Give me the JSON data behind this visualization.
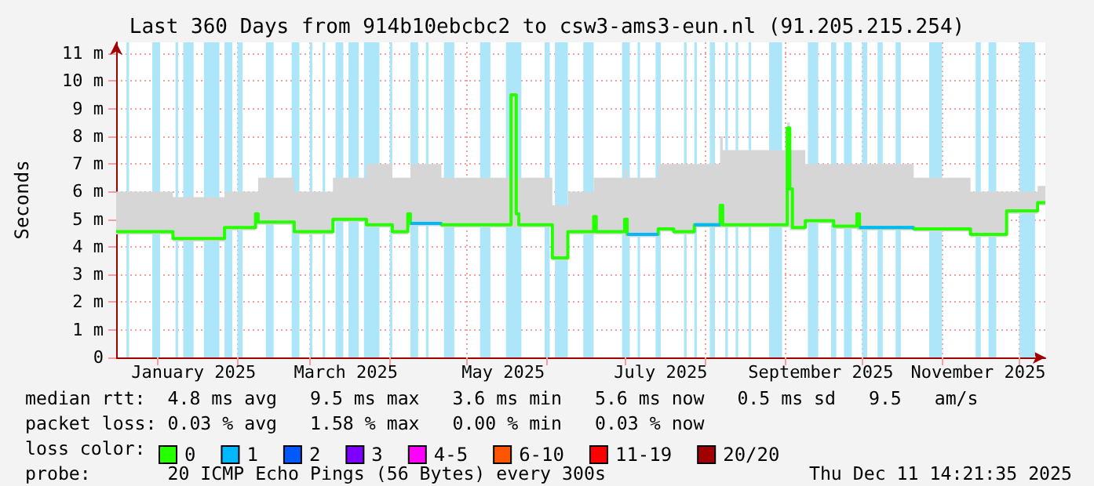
{
  "chart_data": {
    "type": "step",
    "title": "Last 360 Days from 914b10ebcbc2 to csw3-ams3-eun.nl (91.205.215.254)",
    "ylabel": "Seconds",
    "legend_title": "loss color:",
    "legend": "bottom",
    "grid": true,
    "x": [
      "2024-12-16",
      "2025-01-07",
      "2025-01-27",
      "2025-02-08",
      "2025-02-09",
      "2025-02-23",
      "2025-03-10",
      "2025-03-23",
      "2025-04-02",
      "2025-04-08",
      "2025-04-09",
      "2025-04-21",
      "2025-05-18",
      "2025-05-20",
      "2025-05-21",
      "2025-06-03",
      "2025-06-09",
      "2025-06-19",
      "2025-06-20",
      "2025-07-01",
      "2025-07-02",
      "2025-07-14",
      "2025-07-20",
      "2025-07-28",
      "2025-08-07",
      "2025-08-08",
      "2025-09-02",
      "2025-09-03",
      "2025-09-04",
      "2025-09-09",
      "2025-09-20",
      "2025-09-29",
      "2025-09-30",
      "2025-10-21",
      "2025-11-12",
      "2025-11-26",
      "2025-12-08",
      "2025-12-11"
    ],
    "series": [
      {
        "name": "0",
        "color": "#26ff00",
        "values": [
          4.55,
          4.3,
          4.7,
          5.2,
          4.9,
          4.55,
          5.0,
          4.8,
          4.55,
          5.2,
          4.85,
          4.8,
          9.5,
          5.2,
          4.8,
          3.6,
          4.55,
          5.1,
          4.55,
          5.0,
          4.45,
          4.65,
          4.55,
          4.8,
          5.5,
          4.8,
          8.3,
          6.1,
          4.7,
          4.95,
          4.75,
          5.2,
          4.7,
          4.65,
          4.45,
          5.3,
          5.6,
          5.6
        ],
        "lower": [
          4.45,
          4.2,
          4.6,
          4.8,
          4.8,
          4.45,
          4.9,
          4.7,
          4.45,
          4.7,
          4.75,
          4.7,
          4.7,
          4.7,
          4.7,
          3.5,
          4.45,
          4.45,
          4.45,
          4.35,
          4.35,
          4.55,
          4.45,
          4.7,
          4.7,
          4.7,
          4.7,
          4.6,
          4.6,
          4.85,
          4.65,
          4.6,
          4.6,
          4.55,
          4.35,
          5.2,
          5.5,
          5.5
        ],
        "upper": [
          6.0,
          5.8,
          6.0,
          6.0,
          6.5,
          6.0,
          6.5,
          7.0,
          6.5,
          6.5,
          7.0,
          6.5,
          9.6,
          6.5,
          6.5,
          5.5,
          6.0,
          6.5,
          6.5,
          6.8,
          6.5,
          7.0,
          7.0,
          7.0,
          8.0,
          7.5,
          8.5,
          7.5,
          7.5,
          7.0,
          7.0,
          7.0,
          7.0,
          6.5,
          6.0,
          6.0,
          6.2,
          6.0
        ]
      },
      {
        "name": "1",
        "type": "line",
        "color": "#00b8ff",
        "values": [
          null,
          null,
          null,
          null,
          null,
          null,
          null,
          null,
          null,
          null,
          4.85,
          4.85,
          null,
          null,
          null,
          null,
          null,
          null,
          null,
          null,
          4.45,
          4.45,
          null,
          4.8,
          4.8,
          null,
          null,
          null,
          null,
          null,
          null,
          null,
          4.7,
          4.7,
          null,
          null,
          null,
          null
        ]
      },
      {
        "name": "2",
        "color": "#0059ff",
        "values": [
          null,
          null,
          null,
          null,
          null,
          null,
          null,
          null,
          null,
          null,
          null,
          null,
          null,
          null,
          null,
          null,
          null,
          null,
          null,
          null,
          null,
          null,
          null,
          null,
          null,
          null,
          null,
          null,
          null,
          null,
          null,
          null,
          null,
          null,
          null,
          null,
          null,
          null
        ]
      },
      {
        "name": "3",
        "color": "#7e00ff",
        "values": [
          null,
          null,
          null,
          null,
          null,
          null,
          null,
          null,
          null,
          null,
          null,
          null,
          null,
          null,
          null,
          null,
          null,
          null,
          null,
          null,
          null,
          null,
          null,
          null,
          null,
          null,
          null,
          null,
          null,
          null,
          null,
          null,
          null,
          null,
          null,
          null,
          null,
          null
        ]
      },
      {
        "name": "4-5",
        "color": "#ff00ff",
        "values": [
          null,
          null,
          null,
          null,
          null,
          null,
          null,
          null,
          null,
          null,
          null,
          null,
          null,
          null,
          null,
          null,
          null,
          null,
          null,
          null,
          null,
          null,
          null,
          null,
          null,
          null,
          null,
          null,
          null,
          null,
          null,
          null,
          null,
          null,
          null,
          null,
          null,
          null
        ]
      },
      {
        "name": "6-10",
        "color": "#ff5500",
        "values": [
          null,
          null,
          null,
          null,
          null,
          null,
          null,
          null,
          null,
          null,
          null,
          null,
          null,
          null,
          null,
          null,
          null,
          null,
          null,
          null,
          null,
          null,
          null,
          null,
          null,
          null,
          null,
          null,
          null,
          null,
          null,
          null,
          null,
          null,
          null,
          null,
          null,
          null
        ]
      },
      {
        "name": "11-19",
        "color": "#ff0000",
        "values": [
          null,
          null,
          null,
          null,
          null,
          null,
          null,
          null,
          null,
          null,
          null,
          null,
          null,
          null,
          null,
          null,
          null,
          null,
          null,
          null,
          null,
          null,
          null,
          null,
          null,
          null,
          null,
          null,
          null,
          null,
          null,
          null,
          null,
          null,
          null,
          null,
          null,
          null
        ]
      },
      {
        "name": "20/20",
        "color": "#a10000",
        "values": [
          null,
          null,
          null,
          null,
          null,
          null,
          null,
          null,
          null,
          null,
          null,
          null,
          null,
          null,
          null,
          null,
          null,
          null,
          null,
          null,
          null,
          null,
          null,
          null,
          null,
          null,
          null,
          null,
          null,
          null,
          null,
          null,
          null,
          null,
          null,
          null,
          null,
          null
        ]
      }
    ],
    "xlim": [
      "2024-12-16",
      "2025-12-11"
    ],
    "xticks": [
      {
        "value": "2025-01-01",
        "label": null
      },
      {
        "value": "2025-01-15",
        "label": "January 2025"
      },
      {
        "value": "2025-02-01",
        "label": null
      },
      {
        "value": "2025-03-01",
        "label": null
      },
      {
        "value": "2025-03-15",
        "label": "March 2025"
      },
      {
        "value": "2025-04-01",
        "label": null
      },
      {
        "value": "2025-05-01",
        "label": null
      },
      {
        "value": "2025-05-15",
        "label": "May 2025"
      },
      {
        "value": "2025-06-01",
        "label": null
      },
      {
        "value": "2025-07-01",
        "label": null
      },
      {
        "value": "2025-07-15",
        "label": "July 2025"
      },
      {
        "value": "2025-08-01",
        "label": null
      },
      {
        "value": "2025-09-01",
        "label": null
      },
      {
        "value": "2025-09-15",
        "label": "September 2025"
      },
      {
        "value": "2025-10-01",
        "label": null
      },
      {
        "value": "2025-11-01",
        "label": null
      },
      {
        "value": "2025-11-15",
        "label": "November 2025"
      },
      {
        "value": "2025-12-01",
        "label": null
      }
    ],
    "ylim": [
      0,
      11.4
    ],
    "yticks": [
      0,
      {
        "value": 1,
        "label": "1 m"
      },
      {
        "value": 2,
        "label": "2 m"
      },
      {
        "value": 3,
        "label": "3 m"
      },
      {
        "value": 4,
        "label": "4 m"
      },
      {
        "value": 5,
        "label": "5 m"
      },
      {
        "value": 6,
        "label": "6 m"
      },
      {
        "value": 7,
        "label": "7 m"
      },
      {
        "value": 8,
        "label": "8 m"
      },
      {
        "value": 9,
        "label": "9 m"
      },
      {
        "value": 10,
        "label": "10 m"
      },
      {
        "value": 11,
        "label": "11 m"
      }
    ],
    "bands": [
      {
        "axis": "x",
        "from": "2024-12-20",
        "to": "2024-12-21",
        "color": "#aee6f9"
      },
      {
        "axis": "x",
        "from": "2024-12-30",
        "to": "2025-01-02",
        "color": "#aee6f9"
      },
      {
        "axis": "x",
        "from": "2025-01-08",
        "to": "2025-01-09",
        "color": "#aee6f9"
      },
      {
        "axis": "x",
        "from": "2025-01-11",
        "to": "2025-01-15",
        "color": "#aee6f9"
      },
      {
        "axis": "x",
        "from": "2025-01-19",
        "to": "2025-01-25",
        "color": "#aee6f9"
      },
      {
        "axis": "x",
        "from": "2025-01-27",
        "to": "2025-01-30",
        "color": "#aee6f9"
      },
      {
        "axis": "x",
        "from": "2025-02-01",
        "to": "2025-02-03",
        "color": "#aee6f9"
      },
      {
        "axis": "x",
        "from": "2025-02-12",
        "to": "2025-02-15",
        "color": "#aee6f9"
      },
      {
        "axis": "x",
        "from": "2025-02-22",
        "to": "2025-02-25",
        "color": "#aee6f9"
      },
      {
        "axis": "x",
        "from": "2025-03-01",
        "to": "2025-03-02",
        "color": "#aee6f9"
      },
      {
        "axis": "x",
        "from": "2025-03-06",
        "to": "2025-03-07",
        "color": "#aee6f9"
      },
      {
        "axis": "x",
        "from": "2025-03-11",
        "to": "2025-03-14",
        "color": "#aee6f9"
      },
      {
        "axis": "x",
        "from": "2025-03-16",
        "to": "2025-03-20",
        "color": "#aee6f9"
      },
      {
        "axis": "x",
        "from": "2025-03-22",
        "to": "2025-03-28",
        "color": "#aee6f9"
      },
      {
        "axis": "x",
        "from": "2025-04-01",
        "to": "2025-04-02",
        "color": "#aee6f9"
      },
      {
        "axis": "x",
        "from": "2025-04-09",
        "to": "2025-04-12",
        "color": "#aee6f9"
      },
      {
        "axis": "x",
        "from": "2025-04-15",
        "to": "2025-04-16",
        "color": "#aee6f9"
      },
      {
        "axis": "x",
        "from": "2025-04-22",
        "to": "2025-04-26",
        "color": "#aee6f9"
      },
      {
        "axis": "x",
        "from": "2025-05-06",
        "to": "2025-05-10",
        "color": "#aee6f9"
      },
      {
        "axis": "x",
        "from": "2025-05-16",
        "to": "2025-05-22",
        "color": "#aee6f9"
      },
      {
        "axis": "x",
        "from": "2025-05-31",
        "to": "2025-06-02",
        "color": "#aee6f9"
      },
      {
        "axis": "x",
        "from": "2025-06-04",
        "to": "2025-06-09",
        "color": "#aee6f9"
      },
      {
        "axis": "x",
        "from": "2025-06-15",
        "to": "2025-06-19",
        "color": "#aee6f9"
      },
      {
        "axis": "x",
        "from": "2025-06-30",
        "to": "2025-07-03",
        "color": "#aee6f9"
      },
      {
        "axis": "x",
        "from": "2025-07-06",
        "to": "2025-07-07",
        "color": "#aee6f9"
      },
      {
        "axis": "x",
        "from": "2025-07-13",
        "to": "2025-07-15",
        "color": "#aee6f9"
      },
      {
        "axis": "x",
        "from": "2025-07-24",
        "to": "2025-07-25",
        "color": "#aee6f9"
      },
      {
        "axis": "x",
        "from": "2025-07-28",
        "to": "2025-07-29",
        "color": "#aee6f9"
      },
      {
        "axis": "x",
        "from": "2025-08-03",
        "to": "2025-08-05",
        "color": "#aee6f9"
      },
      {
        "axis": "x",
        "from": "2025-08-09",
        "to": "2025-08-10",
        "color": "#aee6f9"
      },
      {
        "axis": "x",
        "from": "2025-08-13",
        "to": "2025-08-14",
        "color": "#aee6f9"
      },
      {
        "axis": "x",
        "from": "2025-08-18",
        "to": "2025-08-19",
        "color": "#aee6f9"
      },
      {
        "axis": "x",
        "from": "2025-08-26",
        "to": "2025-08-31",
        "color": "#aee6f9"
      },
      {
        "axis": "x",
        "from": "2025-09-10",
        "to": "2025-09-14",
        "color": "#aee6f9"
      },
      {
        "axis": "x",
        "from": "2025-09-19",
        "to": "2025-09-21",
        "color": "#aee6f9"
      },
      {
        "axis": "x",
        "from": "2025-09-24",
        "to": "2025-09-27",
        "color": "#aee6f9"
      },
      {
        "axis": "x",
        "from": "2025-10-01",
        "to": "2025-10-03",
        "color": "#aee6f9"
      },
      {
        "axis": "x",
        "from": "2025-10-07",
        "to": "2025-10-09",
        "color": "#aee6f9"
      },
      {
        "axis": "x",
        "from": "2025-10-14",
        "to": "2025-10-16",
        "color": "#aee6f9"
      },
      {
        "axis": "x",
        "from": "2025-10-27",
        "to": "2025-11-01",
        "color": "#aee6f9"
      },
      {
        "axis": "x",
        "from": "2025-11-14",
        "to": "2025-11-16",
        "color": "#aee6f9"
      },
      {
        "axis": "x",
        "from": "2025-11-19",
        "to": "2025-11-22",
        "color": "#aee6f9"
      },
      {
        "axis": "x",
        "from": "2025-12-01",
        "to": "2025-12-07",
        "color": "#aee6f9"
      }
    ],
    "annotations": [
      "median rtt:  4.8 ms avg   9.5 ms max   3.6 ms min   5.6 ms now   0.5 ms sd   9.5   am/s",
      "packet loss: 0.03 % avg   1.58 % max   0.00 % min   0.03 % now",
      "probe:       20 ICMP Echo Pings (56 Bytes) every 300s",
      "Thu Dec 11 14:21:35 2025"
    ]
  }
}
